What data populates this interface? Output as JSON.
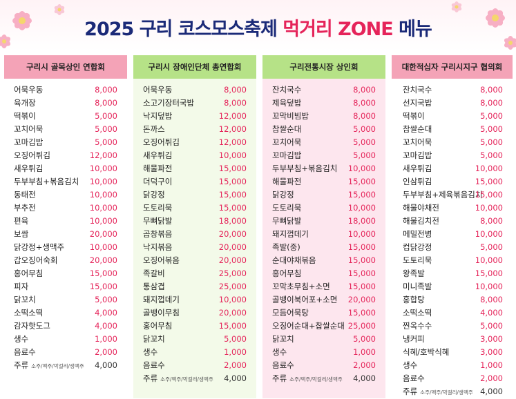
{
  "title": {
    "main": "2025 구리 코스모스축제",
    "accent": "먹거리 ZONE",
    "end": "메뉴"
  },
  "colors": {
    "navy": "#1b2a78",
    "accent": "#e5245a",
    "pink_header": "#f4a3b7",
    "green_header": "#b6e287"
  },
  "columns": [
    {
      "header": "구리시 골목상인 연합회",
      "items": [
        {
          "name": "어묵우동",
          "price": "8,000"
        },
        {
          "name": "육개장",
          "price": "8,000"
        },
        {
          "name": "떡볶이",
          "price": "5,000"
        },
        {
          "name": "꼬치어묵",
          "price": "5,000"
        },
        {
          "name": "꼬마김밥",
          "price": "5,000"
        },
        {
          "name": "오징어튀김",
          "price": "12,000"
        },
        {
          "name": "새우튀김",
          "price": "10,000"
        },
        {
          "name": "두부부침+볶음김치",
          "price": "10,000"
        },
        {
          "name": "동태전",
          "price": "10,000"
        },
        {
          "name": "부추전",
          "price": "10,000"
        },
        {
          "name": "편육",
          "price": "10,000"
        },
        {
          "name": "보쌈",
          "price": "20,000"
        },
        {
          "name": "닭강정+생맥주",
          "price": "10,000"
        },
        {
          "name": "갑오징어숙회",
          "price": "20,000"
        },
        {
          "name": "홍어무침",
          "price": "15,000"
        },
        {
          "name": "피자",
          "price": "15,000"
        },
        {
          "name": "닭꼬치",
          "price": "5,000"
        },
        {
          "name": "소떡소떡",
          "price": "4,000"
        },
        {
          "name": "감자핫도그",
          "price": "4,000"
        },
        {
          "name": "생수",
          "price": "1,000"
        },
        {
          "name": "음료수",
          "price": "2,000"
        },
        {
          "name": "주류",
          "note": "소주/맥주/막걸리/생맥주",
          "price": "4,000"
        }
      ]
    },
    {
      "header": "구리시 장애인단체 총연합회",
      "items": [
        {
          "name": "어묵우동",
          "price": "8,000"
        },
        {
          "name": "소고기장터국밥",
          "price": "8,000"
        },
        {
          "name": "낙지덮밥",
          "price": "12,000"
        },
        {
          "name": "돈까스",
          "price": "12,000"
        },
        {
          "name": "오징어튀김",
          "price": "12,000"
        },
        {
          "name": "새우튀김",
          "price": "10,000"
        },
        {
          "name": "해물파전",
          "price": "15,000"
        },
        {
          "name": "더덕구이",
          "price": "15,000"
        },
        {
          "name": "닭강정",
          "price": "15,000"
        },
        {
          "name": "도토리묵",
          "price": "15,000"
        },
        {
          "name": "무뼈닭발",
          "price": "18,000"
        },
        {
          "name": "곱창볶음",
          "price": "20,000"
        },
        {
          "name": "낙지볶음",
          "price": "20,000"
        },
        {
          "name": "오징어볶음",
          "price": "20,000"
        },
        {
          "name": "족갈비",
          "price": "25,000"
        },
        {
          "name": "통삼겹",
          "price": "25,000"
        },
        {
          "name": "돼지껍데기",
          "price": "10,000"
        },
        {
          "name": "골뱅이무침",
          "price": "20,000"
        },
        {
          "name": "홍어무침",
          "price": "15,000"
        },
        {
          "name": "닭꼬치",
          "price": "5,000"
        },
        {
          "name": "생수",
          "price": "1,000"
        },
        {
          "name": "음료수",
          "price": "2,000"
        },
        {
          "name": "주류",
          "note": "소주/맥주/막걸리/생맥주",
          "price": "4,000"
        }
      ]
    },
    {
      "header": "구리전통시장 상인회",
      "items": [
        {
          "name": "잔치국수",
          "price": "8,000"
        },
        {
          "name": "제육덮밥",
          "price": "8,000"
        },
        {
          "name": "꼬막비빔밥",
          "price": "8,000"
        },
        {
          "name": "찹쌀순대",
          "price": "5,000"
        },
        {
          "name": "꼬치어묵",
          "price": "5,000"
        },
        {
          "name": "꼬마김밥",
          "price": "5,000"
        },
        {
          "name": "두부부침+볶음김치",
          "price": "10,000"
        },
        {
          "name": "해물파전",
          "price": "15,000"
        },
        {
          "name": "닭강정",
          "price": "15,000"
        },
        {
          "name": "도토리묵",
          "price": "10,000"
        },
        {
          "name": "무뼈닭발",
          "price": "18,000"
        },
        {
          "name": "돼지껍데기",
          "price": "10,000"
        },
        {
          "name": "족발(중)",
          "price": "15,000"
        },
        {
          "name": "순대야채볶음",
          "price": "15,000"
        },
        {
          "name": "홍어무침",
          "price": "15,000"
        },
        {
          "name": "꼬막초무침+소면",
          "price": "15,000"
        },
        {
          "name": "골뱅이북어포+소면",
          "price": "20,000"
        },
        {
          "name": "모듬어묵탕",
          "price": "15,000"
        },
        {
          "name": "오징어순대+찹쌀순대",
          "price": "25,000"
        },
        {
          "name": "닭꼬치",
          "price": "5,000"
        },
        {
          "name": "생수",
          "price": "1,000"
        },
        {
          "name": "음료수",
          "price": "2,000"
        },
        {
          "name": "주류",
          "note": "소주/맥주/막걸리/생맥주",
          "price": "4,000"
        }
      ]
    },
    {
      "header": "대한적십자 구리시지구 협의회",
      "items": [
        {
          "name": "잔치국수",
          "price": "8,000"
        },
        {
          "name": "선지국밥",
          "price": "8,000"
        },
        {
          "name": "떡볶이",
          "price": "5,000"
        },
        {
          "name": "찹쌀순대",
          "price": "5,000"
        },
        {
          "name": "꼬치어묵",
          "price": "5,000"
        },
        {
          "name": "꼬마김밥",
          "price": "5,000"
        },
        {
          "name": "새우튀김",
          "price": "10,000"
        },
        {
          "name": "인삼튀김",
          "price": "15,000"
        },
        {
          "name": "두부부침+제육볶음김치",
          "price": "15,000"
        },
        {
          "name": "해물야채전",
          "price": "10,000"
        },
        {
          "name": "해물김치전",
          "price": "8,000"
        },
        {
          "name": "메밀전병",
          "price": "10,000"
        },
        {
          "name": "컵닭강정",
          "price": "5,000"
        },
        {
          "name": "도토리묵",
          "price": "10,000"
        },
        {
          "name": "왕족발",
          "price": "15,000"
        },
        {
          "name": "미니족발",
          "price": "10,000"
        },
        {
          "name": "홍합탕",
          "price": "8,000"
        },
        {
          "name": "소떡소떡",
          "price": "4,000"
        },
        {
          "name": "찐옥수수",
          "price": "5,000"
        },
        {
          "name": "냉커피",
          "price": "3,000"
        },
        {
          "name": "식혜/호박식혜",
          "price": "3,000"
        },
        {
          "name": "생수",
          "price": "1,000"
        },
        {
          "name": "음료수",
          "price": "2,000"
        },
        {
          "name": "주류",
          "note": "소주/맥주/막걸리/생맥주",
          "price": "4,000"
        }
      ]
    }
  ]
}
